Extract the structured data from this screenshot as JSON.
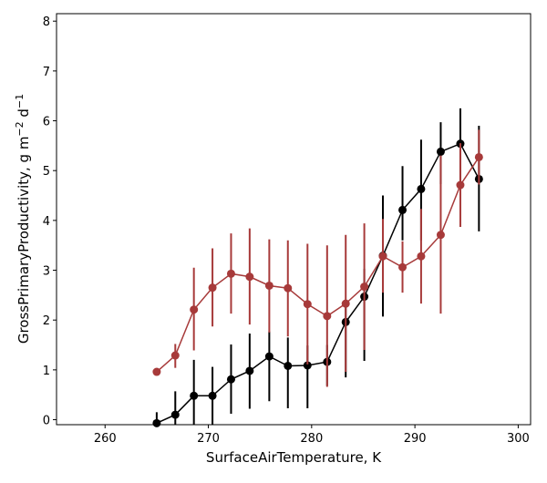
{
  "chart_data": {
    "type": "line",
    "title": "",
    "xlabel": "SurfaceAirTemperature,  K",
    "ylabel_parts": {
      "base": "GrossPrimaryProductivity,  g m",
      "exp1": "−2",
      "mid": " d",
      "exp2": "−1"
    },
    "xlim": [
      255.3,
      301.2
    ],
    "ylim": [
      -0.1,
      8.15
    ],
    "xticks": [
      260,
      270,
      280,
      290,
      300
    ],
    "yticks": [
      0,
      1,
      2,
      3,
      4,
      5,
      6,
      7,
      8
    ],
    "grid": false,
    "legend": "none",
    "series": [
      {
        "color": "#000000",
        "points": [
          {
            "x": 265.0,
            "y": -0.07,
            "lo": -0.1,
            "hi": 0.15
          },
          {
            "x": 266.8,
            "y": 0.1,
            "lo": -0.1,
            "hi": 0.57
          },
          {
            "x": 268.6,
            "y": 0.48,
            "lo": -0.1,
            "hi": 1.2
          },
          {
            "x": 270.4,
            "y": 0.48,
            "lo": -0.1,
            "hi": 1.06
          },
          {
            "x": 272.2,
            "y": 0.81,
            "lo": 0.12,
            "hi": 1.51
          },
          {
            "x": 274.0,
            "y": 0.98,
            "lo": 0.22,
            "hi": 1.73
          },
          {
            "x": 275.9,
            "y": 1.27,
            "lo": 0.37,
            "hi": 1.77
          },
          {
            "x": 277.7,
            "y": 1.08,
            "lo": 0.23,
            "hi": 1.65
          },
          {
            "x": 279.6,
            "y": 1.09,
            "lo": 0.23,
            "hi": 1.49
          },
          {
            "x": 281.5,
            "y": 1.16,
            "lo": 0.68,
            "hi": 1.5
          },
          {
            "x": 283.3,
            "y": 1.96,
            "lo": 0.85,
            "hi": 2.31
          },
          {
            "x": 285.1,
            "y": 2.47,
            "lo": 1.18,
            "hi": 3.03
          },
          {
            "x": 286.9,
            "y": 3.29,
            "lo": 2.07,
            "hi": 4.5
          },
          {
            "x": 288.8,
            "y": 4.21,
            "lo": 3.6,
            "hi": 5.09
          },
          {
            "x": 290.6,
            "y": 4.63,
            "lo": 3.6,
            "hi": 5.62
          },
          {
            "x": 292.5,
            "y": 5.38,
            "lo": 4.73,
            "hi": 5.97
          },
          {
            "x": 294.4,
            "y": 5.54,
            "lo": 4.78,
            "hi": 6.25
          },
          {
            "x": 296.2,
            "y": 4.83,
            "lo": 3.78,
            "hi": 5.9
          }
        ]
      },
      {
        "color": "#a73a3a",
        "points": [
          {
            "x": 265.0,
            "y": 0.96,
            "lo": 0.96,
            "hi": 0.96
          },
          {
            "x": 266.8,
            "y": 1.29,
            "lo": 1.04,
            "hi": 1.52
          },
          {
            "x": 268.6,
            "y": 2.21,
            "lo": 1.39,
            "hi": 3.05
          },
          {
            "x": 270.4,
            "y": 2.65,
            "lo": 1.87,
            "hi": 3.44
          },
          {
            "x": 272.2,
            "y": 2.93,
            "lo": 2.13,
            "hi": 3.74
          },
          {
            "x": 274.0,
            "y": 2.87,
            "lo": 1.91,
            "hi": 3.84
          },
          {
            "x": 275.9,
            "y": 2.69,
            "lo": 1.75,
            "hi": 3.62
          },
          {
            "x": 277.7,
            "y": 2.64,
            "lo": 1.67,
            "hi": 3.6
          },
          {
            "x": 279.6,
            "y": 2.32,
            "lo": 1.11,
            "hi": 3.53
          },
          {
            "x": 281.5,
            "y": 2.08,
            "lo": 0.66,
            "hi": 3.5
          },
          {
            "x": 283.3,
            "y": 2.33,
            "lo": 0.96,
            "hi": 3.71
          },
          {
            "x": 285.1,
            "y": 2.67,
            "lo": 1.4,
            "hi": 3.94
          },
          {
            "x": 286.9,
            "y": 3.28,
            "lo": 2.55,
            "hi": 4.03
          },
          {
            "x": 288.8,
            "y": 3.06,
            "lo": 2.55,
            "hi": 3.58
          },
          {
            "x": 290.6,
            "y": 3.28,
            "lo": 2.33,
            "hi": 4.23
          },
          {
            "x": 292.5,
            "y": 3.71,
            "lo": 2.13,
            "hi": 5.3
          },
          {
            "x": 294.4,
            "y": 4.71,
            "lo": 3.87,
            "hi": 5.55
          },
          {
            "x": 296.2,
            "y": 5.27,
            "lo": 4.72,
            "hi": 5.82
          }
        ]
      }
    ]
  }
}
